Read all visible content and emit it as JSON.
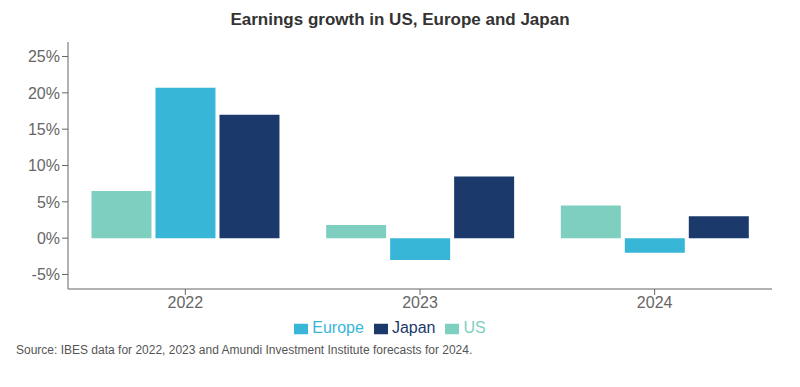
{
  "chart_data": {
    "type": "bar",
    "title": "Earnings growth in US, Europe and Japan",
    "categories": [
      "2022",
      "2023",
      "2024"
    ],
    "series": [
      {
        "name": "US",
        "color": "#7ECFC0",
        "values": [
          6.5,
          1.8,
          4.5
        ]
      },
      {
        "name": "Europe",
        "color": "#38B6D8",
        "values": [
          20.7,
          -3.0,
          -2.0
        ]
      },
      {
        "name": "Japan",
        "color": "#1B3A6B",
        "values": [
          17.0,
          8.5,
          3.0
        ]
      }
    ],
    "ylim": [
      -7,
      27
    ],
    "yticks": [
      {
        "value": -5,
        "label": "-5%"
      },
      {
        "value": 0,
        "label": "0%"
      },
      {
        "value": 5,
        "label": "5%"
      },
      {
        "value": 10,
        "label": "10%"
      },
      {
        "value": 15,
        "label": "15%"
      },
      {
        "value": 20,
        "label": "20%"
      },
      {
        "value": 25,
        "label": "25%"
      }
    ],
    "grid": false,
    "legend": "bottom",
    "annotations": [
      "Source: IBES data for 2022, 2023 and Amundi Investment Institute forecasts for 2024."
    ]
  }
}
